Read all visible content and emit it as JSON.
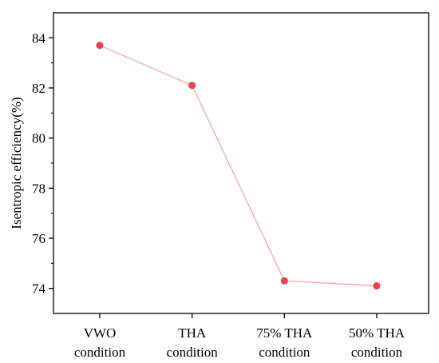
{
  "chart_data": {
    "type": "line",
    "categories": [
      [
        "VWO",
        "condition"
      ],
      [
        "THA",
        "condition"
      ],
      [
        "75% THA",
        "condition"
      ],
      [
        "50% THA",
        "condition"
      ]
    ],
    "series": [
      {
        "values": [
          83.7,
          82.1,
          74.3,
          74.1
        ],
        "color": "#e8434e",
        "line_color": "#f2a0a4",
        "marker": "circle"
      }
    ],
    "ylabel": "Isentropic efficiency(%)",
    "xlabel": "",
    "title": "",
    "ylim": [
      73.0,
      85.0
    ],
    "yticks": [
      74,
      76,
      78,
      80,
      82,
      84
    ],
    "grid": false,
    "legend": "none",
    "frame": "box"
  }
}
